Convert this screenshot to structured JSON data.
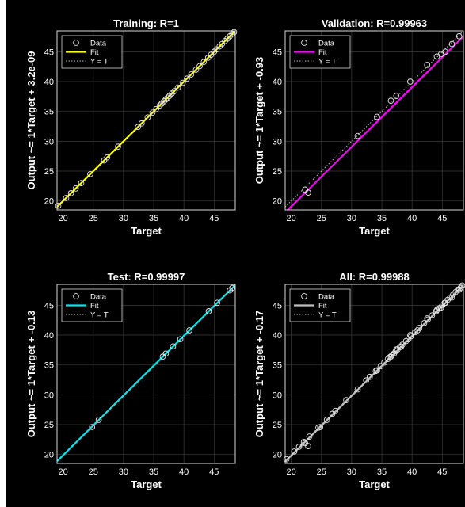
{
  "chart_data": [
    {
      "type": "scatter",
      "title": "Training: R=1",
      "xlabel": "Target",
      "ylabel": "Output ~= 1*Target + 3.2e-09",
      "xlim": [
        19,
        48.5
      ],
      "ylim": [
        18.5,
        48.5
      ],
      "xticks": [
        20,
        25,
        30,
        35,
        40,
        45
      ],
      "yticks": [
        20,
        25,
        30,
        35,
        40,
        45
      ],
      "fit_color": "#ffff00",
      "fit_line": [
        [
          19,
          19
        ],
        [
          48.5,
          48.5
        ]
      ],
      "legend": [
        "Data",
        "Fit",
        "Y = T"
      ],
      "legend_position": "top-left",
      "series": [
        {
          "name": "Data",
          "x": [
            19.2,
            20.5,
            21.3,
            22.1,
            23.0,
            24.5,
            26.8,
            27.3,
            29.1,
            32.4,
            33.0,
            34.0,
            34.8,
            35.4,
            36.0,
            36.3,
            36.7,
            37.0,
            37.3,
            37.6,
            38.0,
            38.4,
            39.0,
            39.8,
            40.5,
            41.2,
            42.0,
            42.6,
            43.3,
            44.0,
            44.5,
            45.0,
            45.4,
            45.9,
            46.3,
            46.8,
            47.2,
            47.6,
            48.0,
            48.3
          ],
          "y": [
            19.2,
            20.5,
            21.3,
            22.1,
            23.0,
            24.5,
            26.8,
            27.3,
            29.1,
            32.4,
            33.0,
            34.0,
            34.8,
            35.4,
            36.0,
            36.3,
            36.7,
            37.0,
            37.3,
            37.6,
            38.0,
            38.4,
            39.0,
            39.8,
            40.5,
            41.2,
            42.0,
            42.6,
            43.3,
            44.0,
            44.5,
            45.0,
            45.4,
            45.9,
            46.3,
            46.8,
            47.2,
            47.6,
            48.0,
            48.3
          ]
        }
      ]
    },
    {
      "type": "scatter",
      "title": "Validation: R=0.99963",
      "xlabel": "Target",
      "ylabel": "Output ~= 1*Target + -0.93",
      "xlim": [
        19,
        48.5
      ],
      "ylim": [
        18.5,
        48.5
      ],
      "xticks": [
        20,
        25,
        30,
        35,
        40,
        45
      ],
      "yticks": [
        20,
        25,
        30,
        35,
        40,
        45
      ],
      "fit_color": "#ff00ff",
      "fit_line": [
        [
          19,
          18.07
        ],
        [
          48.5,
          47.57
        ]
      ],
      "legend": [
        "Data",
        "Fit",
        "Y = T"
      ],
      "legend_position": "top-left",
      "series": [
        {
          "name": "Data",
          "x": [
            22.3,
            22.8,
            31.0,
            34.2,
            36.5,
            37.4,
            39.7,
            42.5,
            44.1,
            44.8,
            45.5,
            46.6,
            47.8
          ],
          "y": [
            21.9,
            21.4,
            30.9,
            34.1,
            36.8,
            37.6,
            40.0,
            42.8,
            44.2,
            44.6,
            45.0,
            46.3,
            47.6
          ]
        }
      ]
    },
    {
      "type": "scatter",
      "title": "Test: R=0.99997",
      "xlabel": "Target",
      "ylabel": "Output ~= 1*Target + -0.13",
      "xlim": [
        19,
        48.5
      ],
      "ylim": [
        18.5,
        48.5
      ],
      "xticks": [
        20,
        25,
        30,
        35,
        40,
        45
      ],
      "yticks": [
        20,
        25,
        30,
        35,
        40,
        45
      ],
      "fit_color": "#00e5ee",
      "fit_line": [
        [
          19,
          18.87
        ],
        [
          48.5,
          48.37
        ]
      ],
      "legend": [
        "Data",
        "Fit",
        "Y = T"
      ],
      "legend_position": "top-left",
      "series": [
        {
          "name": "Data",
          "x": [
            24.8,
            25.9,
            36.5,
            37.0,
            38.2,
            39.4,
            40.9,
            44.1,
            45.5,
            47.6,
            48.0
          ],
          "y": [
            24.6,
            25.8,
            36.4,
            36.9,
            38.1,
            39.3,
            40.8,
            44.0,
            45.4,
            47.5,
            47.9
          ]
        }
      ]
    },
    {
      "type": "scatter",
      "title": "All: R=0.99988",
      "xlabel": "Target",
      "ylabel": "Output ~= 1*Target + -0.17",
      "xlim": [
        19,
        48.5
      ],
      "ylim": [
        18.5,
        48.5
      ],
      "xticks": [
        20,
        25,
        30,
        35,
        40,
        45
      ],
      "yticks": [
        20,
        25,
        30,
        35,
        40,
        45
      ],
      "fit_color": "#c0c0c0",
      "fit_line": [
        [
          19,
          18.83
        ],
        [
          48.5,
          48.33
        ]
      ],
      "legend": [
        "Data",
        "Fit",
        "Y = T"
      ],
      "legend_position": "top-left",
      "series": [
        {
          "name": "Data",
          "x": [
            19.2,
            20.5,
            21.3,
            22.1,
            22.3,
            22.8,
            23.0,
            24.5,
            24.8,
            25.9,
            26.8,
            27.3,
            29.1,
            31.0,
            32.4,
            33.0,
            34.0,
            34.2,
            34.8,
            35.4,
            36.0,
            36.3,
            36.5,
            36.7,
            37.0,
            37.3,
            37.4,
            37.6,
            38.0,
            38.2,
            38.4,
            39.0,
            39.4,
            39.7,
            39.8,
            40.5,
            40.9,
            41.2,
            42.0,
            42.5,
            42.6,
            43.3,
            44.0,
            44.1,
            44.5,
            44.8,
            45.0,
            45.4,
            45.5,
            45.9,
            46.3,
            46.6,
            46.8,
            47.2,
            47.6,
            47.8,
            48.0,
            48.3
          ],
          "y": [
            19.2,
            20.5,
            21.3,
            22.1,
            21.9,
            21.4,
            23.0,
            24.5,
            24.6,
            25.8,
            26.8,
            27.3,
            29.1,
            30.9,
            32.4,
            33.0,
            34.0,
            34.1,
            34.8,
            35.4,
            36.0,
            36.3,
            36.4,
            36.7,
            36.9,
            37.3,
            37.6,
            37.6,
            38.0,
            38.1,
            38.4,
            39.0,
            39.3,
            40.0,
            39.8,
            40.5,
            40.8,
            41.2,
            42.0,
            42.8,
            42.6,
            43.3,
            44.0,
            44.2,
            44.5,
            44.6,
            45.0,
            45.4,
            45.4,
            45.9,
            46.3,
            46.3,
            46.8,
            47.2,
            47.6,
            47.6,
            47.9,
            48.3
          ]
        }
      ]
    }
  ]
}
